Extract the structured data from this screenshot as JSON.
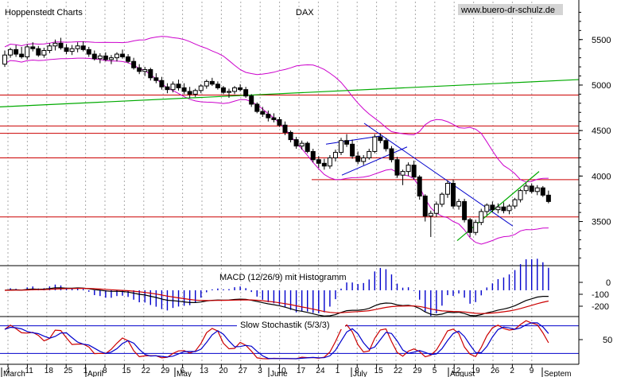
{
  "header": {
    "source": "Hoppenstedt Charts",
    "instrument": "DAX",
    "website": "www.buero-dr-schulz.de"
  },
  "chart_data": {
    "type": "candlestick",
    "price_axis": {
      "ticks": [
        "5500",
        "5000",
        "4500",
        "4000",
        "3500"
      ],
      "tick_values": [
        5500,
        5000,
        4500,
        4000,
        3500
      ],
      "range": [
        3050,
        5900
      ]
    },
    "horizontal_levels": [
      4890,
      4550,
      4470,
      4200,
      3960,
      3550
    ],
    "support_line": {
      "from": [
        "Mar 4",
        4760
      ],
      "to": [
        "Sep 6",
        5060
      ]
    },
    "candles": [
      [
        5230,
        5380,
        5200,
        5330
      ],
      [
        5330,
        5410,
        5300,
        5390
      ],
      [
        5390,
        5440,
        5310,
        5340
      ],
      [
        5340,
        5420,
        5290,
        5310
      ],
      [
        5310,
        5450,
        5280,
        5420
      ],
      [
        5420,
        5470,
        5370,
        5400
      ],
      [
        5400,
        5430,
        5310,
        5330
      ],
      [
        5330,
        5410,
        5300,
        5380
      ],
      [
        5380,
        5460,
        5350,
        5430
      ],
      [
        5430,
        5500,
        5380,
        5460
      ],
      [
        5460,
        5520,
        5390,
        5410
      ],
      [
        5410,
        5450,
        5340,
        5370
      ],
      [
        5370,
        5440,
        5330,
        5400
      ],
      [
        5400,
        5470,
        5360,
        5430
      ],
      [
        5430,
        5480,
        5370,
        5390
      ],
      [
        5390,
        5420,
        5310,
        5340
      ],
      [
        5340,
        5380,
        5270,
        5290
      ],
      [
        5290,
        5350,
        5240,
        5320
      ],
      [
        5320,
        5360,
        5260,
        5280
      ],
      [
        5280,
        5330,
        5230,
        5300
      ],
      [
        5300,
        5360,
        5260,
        5340
      ],
      [
        5340,
        5390,
        5290,
        5310
      ],
      [
        5310,
        5340,
        5240,
        5260
      ],
      [
        5260,
        5300,
        5170,
        5190
      ],
      [
        5190,
        5230,
        5120,
        5150
      ],
      [
        5150,
        5200,
        5100,
        5170
      ],
      [
        5170,
        5190,
        5050,
        5080
      ],
      [
        5080,
        5130,
        5020,
        5050
      ],
      [
        5050,
        5090,
        4950,
        4980
      ],
      [
        4980,
        5020,
        4910,
        4950
      ],
      [
        4950,
        5040,
        4920,
        5010
      ],
      [
        5010,
        5060,
        4940,
        4970
      ],
      [
        4970,
        5020,
        4900,
        4930
      ],
      [
        4930,
        4980,
        4860,
        4900
      ],
      [
        4900,
        4960,
        4870,
        4940
      ],
      [
        4940,
        5010,
        4910,
        4990
      ],
      [
        4990,
        5060,
        4960,
        5040
      ],
      [
        5040,
        5080,
        4990,
        5010
      ],
      [
        5010,
        5040,
        4950,
        4970
      ],
      [
        4970,
        4990,
        4900,
        4920
      ],
      [
        4920,
        4960,
        4860,
        4930
      ],
      [
        4930,
        4990,
        4900,
        4970
      ],
      [
        4970,
        5010,
        4930,
        4950
      ],
      [
        4950,
        4980,
        4860,
        4880
      ],
      [
        4880,
        4900,
        4760,
        4790
      ],
      [
        4790,
        4810,
        4690,
        4710
      ],
      [
        4710,
        4760,
        4650,
        4680
      ],
      [
        4680,
        4720,
        4600,
        4640
      ],
      [
        4640,
        4690,
        4590,
        4620
      ],
      [
        4620,
        4650,
        4540,
        4560
      ],
      [
        4560,
        4600,
        4450,
        4480
      ],
      [
        4480,
        4500,
        4370,
        4400
      ],
      [
        4400,
        4430,
        4300,
        4330
      ],
      [
        4330,
        4390,
        4290,
        4360
      ],
      [
        4360,
        4380,
        4250,
        4270
      ],
      [
        4270,
        4300,
        4150,
        4180
      ],
      [
        4180,
        4220,
        4090,
        4140
      ],
      [
        4140,
        4190,
        4070,
        4110
      ],
      [
        4110,
        4230,
        4080,
        4200
      ],
      [
        4200,
        4290,
        4160,
        4260
      ],
      [
        4260,
        4420,
        4230,
        4390
      ],
      [
        4390,
        4460,
        4320,
        4350
      ],
      [
        4350,
        4400,
        4190,
        4220
      ],
      [
        4220,
        4270,
        4130,
        4160
      ],
      [
        4160,
        4230,
        4120,
        4200
      ],
      [
        4200,
        4300,
        4180,
        4270
      ],
      [
        4270,
        4460,
        4250,
        4430
      ],
      [
        4430,
        4470,
        4360,
        4390
      ],
      [
        4390,
        4420,
        4270,
        4300
      ],
      [
        4300,
        4330,
        4150,
        4180
      ],
      [
        4180,
        4210,
        3980,
        4010
      ],
      [
        4010,
        4070,
        3900,
        4050
      ],
      [
        4050,
        4150,
        4000,
        4120
      ],
      [
        4120,
        4170,
        3960,
        3990
      ],
      [
        3990,
        4010,
        3740,
        3780
      ],
      [
        3780,
        3800,
        3500,
        3560
      ],
      [
        3560,
        3620,
        3330,
        3590
      ],
      [
        3590,
        3720,
        3550,
        3690
      ],
      [
        3690,
        3820,
        3660,
        3800
      ],
      [
        3800,
        3950,
        3760,
        3920
      ],
      [
        3920,
        3960,
        3640,
        3670
      ],
      [
        3670,
        3750,
        3630,
        3720
      ],
      [
        3720,
        3750,
        3490,
        3520
      ],
      [
        3520,
        3540,
        3330,
        3380
      ],
      [
        3380,
        3520,
        3350,
        3490
      ],
      [
        3490,
        3640,
        3460,
        3610
      ],
      [
        3610,
        3700,
        3570,
        3680
      ],
      [
        3680,
        3720,
        3600,
        3630
      ],
      [
        3630,
        3700,
        3590,
        3660
      ],
      [
        3660,
        3710,
        3590,
        3620
      ],
      [
        3620,
        3690,
        3580,
        3670
      ],
      [
        3670,
        3760,
        3640,
        3740
      ],
      [
        3740,
        3860,
        3710,
        3840
      ],
      [
        3840,
        3920,
        3800,
        3890
      ],
      [
        3890,
        3920,
        3810,
        3830
      ],
      [
        3830,
        3900,
        3790,
        3870
      ],
      [
        3870,
        3890,
        3770,
        3790
      ],
      [
        3790,
        3840,
        3700,
        3720
      ]
    ],
    "macd": {
      "label": "MACD (12/26/9) mit Histogramm",
      "ticks": [
        "0",
        "-100",
        "-200"
      ],
      "tick_values": [
        0,
        -100,
        -200
      ]
    },
    "stochastic": {
      "label": "Slow Stochastik (5/3/3)",
      "ticks": [
        "50"
      ],
      "tick_values": [
        50
      ],
      "levels": [
        80,
        20
      ]
    },
    "x_axis": {
      "day_ticks": [
        "4",
        "11",
        "18",
        "25",
        "1",
        "8",
        "15",
        "22",
        "29",
        "6",
        "13",
        "20",
        "27",
        "3",
        "10",
        "17",
        "24",
        "1",
        "8",
        "15",
        "22",
        "29",
        "5",
        "12",
        "19",
        "26",
        "2",
        "9"
      ],
      "months": [
        "March",
        "April",
        "May",
        "June",
        "July",
        "August",
        "Septem"
      ]
    },
    "colors": {
      "candles": "#000000",
      "bollinger": "#cc00cc",
      "horizontal_levels": "#cc0000",
      "support_line": "#00aa00",
      "trend_lines": "#0000cc",
      "macd_line": "#000000",
      "signal_line": "#cc0000",
      "histogram": "#0000cc",
      "stoch_k": "#cc0000",
      "stoch_d": "#0000cc",
      "grid": "#aaaaaa"
    }
  }
}
